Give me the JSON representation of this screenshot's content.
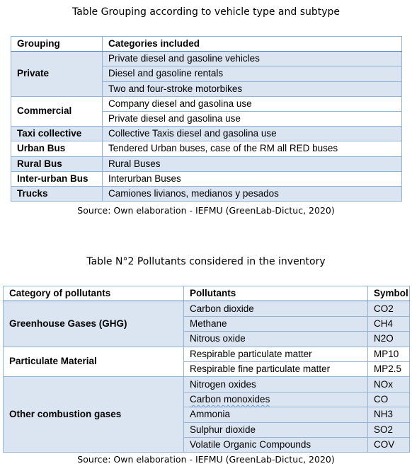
{
  "table1": {
    "title": "Table Grouping according to vehicle type and subtype",
    "headers": [
      "Grouping",
      "Categories included"
    ],
    "groups": [
      {
        "name": "Private",
        "items": [
          "Private diesel and gasoline vehicles",
          "Diesel and gasoline rentals",
          "Two and four-stroke motorbikes"
        ]
      },
      {
        "name": "Commercial",
        "items": [
          "Company diesel and gasolina use",
          "Private diesel and gasolina use"
        ]
      },
      {
        "name": "Taxi collective",
        "items": [
          "Collective Taxis diesel and gasolina use"
        ]
      },
      {
        "name": "Urban Bus",
        "items": [
          "Tendered Urban buses, case of the RM all RED buses"
        ]
      },
      {
        "name": "Rural Bus",
        "items": [
          "Rural Buses"
        ]
      },
      {
        "name": "Inter-urban Bus",
        "items": [
          "Interurban Buses"
        ]
      },
      {
        "name": "Trucks",
        "items": [
          "Camiones livianos, medianos y pesados"
        ]
      }
    ],
    "source": "Source: Own elaboration - IEFMU (GreenLab-Dictuc, 2020)"
  },
  "table2": {
    "title": "Table N°2 Pollutants considered in the inventory",
    "headers": [
      "Category of pollutants",
      "Pollutants",
      "Symbol"
    ],
    "groups": [
      {
        "name": "Greenhouse Gases (GHG)",
        "rows": [
          [
            "Carbon dioxide",
            "CO2"
          ],
          [
            "Methane",
            "CH4"
          ],
          [
            "Nitrous oxide",
            "N2O"
          ]
        ]
      },
      {
        "name": "Particulate Material",
        "rows": [
          [
            "Respirable particulate matter",
            "MP10"
          ],
          [
            "Respirable fine particulate matter",
            "MP2.5"
          ]
        ]
      },
      {
        "name": "Other combustion gases",
        "rows": [
          [
            "Nitrogen oxides",
            "NOx"
          ],
          [
            "Carbon monoxides",
            "CO"
          ],
          [
            "Ammonia",
            "NH3"
          ],
          [
            "Sulphur dioxide",
            "SO2"
          ],
          [
            "Volatile Organic Compounds",
            "COV"
          ]
        ]
      }
    ],
    "source": "Source: Own elaboration - IEFMU (GreenLab-Dictuc, 2020)"
  },
  "colors": {
    "band": "#dbe5f1",
    "border": "#95b3d7",
    "rule": "#4f81bd"
  }
}
